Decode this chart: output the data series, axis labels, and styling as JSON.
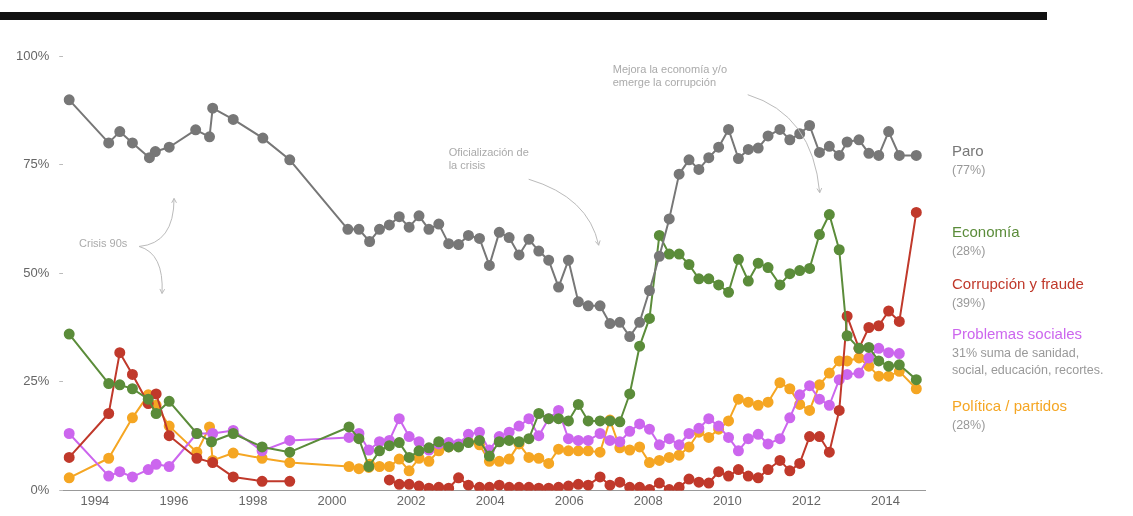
{
  "chart_data": {
    "type": "line",
    "xlim": [
      1993.2,
      2015
    ],
    "xticks": [
      1994,
      1996,
      1998,
      2000,
      2002,
      2004,
      2006,
      2008,
      2010,
      2012,
      2014
    ],
    "ylim": [
      0,
      100
    ],
    "yticks": [
      {
        "value": 0,
        "label": "0%"
      },
      {
        "value": 25,
        "label": "25%"
      },
      {
        "value": 50,
        "label": "50%"
      },
      {
        "value": 75,
        "label": "75%"
      },
      {
        "value": 100,
        "label": "100%"
      }
    ],
    "grid": false,
    "legend": false,
    "marker": "circle",
    "line_style": "solid",
    "series": [
      {
        "name": "Paro",
        "color": "#777777",
        "x": [
          1993.35,
          1994.35,
          1994.63,
          1994.95,
          1995.38,
          1995.53,
          1995.88,
          1996.55,
          1996.9,
          1996.98,
          1997.5,
          1998.25,
          1998.93,
          2000.4,
          2000.68,
          2000.95,
          2001.2,
          2001.45,
          2001.7,
          2001.95,
          2002.2,
          2002.45,
          2002.7,
          2002.95,
          2003.2,
          2003.45,
          2003.73,
          2003.98,
          2004.23,
          2004.48,
          2004.73,
          2004.98,
          2005.23,
          2005.48,
          2005.73,
          2005.98,
          2006.23,
          2006.48,
          2006.78,
          2007.03,
          2007.28,
          2007.53,
          2007.78,
          2008.03,
          2008.28,
          2008.53,
          2008.78,
          2009.03,
          2009.28,
          2009.53,
          2009.78,
          2010.03,
          2010.28,
          2010.53,
          2010.78,
          2011.03,
          2011.33,
          2011.58,
          2011.83,
          2012.08,
          2012.33,
          2012.58,
          2012.83,
          2013.03,
          2013.33,
          2013.58,
          2013.83,
          2014.08,
          2014.35,
          2014.78
        ],
        "values": [
          89.9,
          80,
          82.6,
          80,
          76.6,
          78,
          79,
          83,
          81.4,
          88,
          85.4,
          81.1,
          76.1,
          60.1,
          60.1,
          57.3,
          60.1,
          61.1,
          63,
          60.6,
          63.2,
          60.1,
          61.3,
          56.8,
          56.6,
          58.7,
          58,
          51.8,
          59.4,
          58.2,
          54.2,
          57.8,
          55.1,
          53,
          46.8,
          53,
          43.4,
          42.5,
          42.5,
          38.4,
          38.7,
          35.4,
          38.7,
          46,
          53.9,
          62.5,
          72.8,
          76.1,
          73.9,
          76.6,
          79,
          83.1,
          76.4,
          78.5,
          78.8,
          81.6,
          83.1,
          80.7,
          82.1,
          84,
          77.8,
          79.2,
          77.1,
          80.2,
          80.7,
          77.6,
          77.1,
          82.6,
          77.1,
          77.1
        ]
      },
      {
        "name": "Economía",
        "color": "#5b8c3a",
        "x": [
          1993.35,
          1994.35,
          1994.63,
          1994.95,
          1995.35,
          1995.55,
          1995.88,
          1996.58,
          1996.95,
          1997.5,
          1998.23,
          1998.93,
          2000.43,
          2000.68,
          2000.93,
          2001.2,
          2001.45,
          2001.7,
          2001.95,
          2002.2,
          2002.45,
          2002.7,
          2002.95,
          2003.2,
          2003.45,
          2003.73,
          2003.98,
          2004.23,
          2004.48,
          2004.73,
          2004.98,
          2005.23,
          2005.48,
          2005.73,
          2005.98,
          2006.23,
          2006.48,
          2006.78,
          2007.03,
          2007.28,
          2007.53,
          2007.78,
          2008.03,
          2008.28,
          2008.53,
          2008.78,
          2009.03,
          2009.28,
          2009.53,
          2009.78,
          2010.03,
          2010.28,
          2010.53,
          2010.78,
          2011.03,
          2011.33,
          2011.58,
          2011.83,
          2012.08,
          2012.33,
          2012.58,
          2012.83,
          2013.03,
          2013.33,
          2013.58,
          2013.83,
          2014.08,
          2014.35,
          2014.78
        ],
        "values": [
          36,
          24.6,
          24.3,
          23.4,
          21,
          17.7,
          20.5,
          13.1,
          11.2,
          13.1,
          10,
          8.8,
          14.6,
          11.9,
          5.5,
          9.1,
          10.3,
          11,
          7.6,
          9.1,
          9.8,
          11.2,
          10,
          10,
          11,
          11.5,
          7.9,
          11.2,
          11.5,
          11.2,
          11.9,
          17.7,
          16.5,
          16.5,
          16,
          19.8,
          16,
          16,
          16,
          15.8,
          22.2,
          33.2,
          39.6,
          58.7,
          54.4,
          54.4,
          52,
          48.7,
          48.7,
          47.3,
          45.6,
          53.2,
          48.2,
          52.3,
          51.3,
          47.3,
          49.9,
          50.6,
          51.1,
          58.9,
          63.5,
          55.4,
          35.6,
          32.7,
          32.9,
          29.8,
          28.6,
          28.9,
          25.5
        ]
      },
      {
        "name": "Corrupción y fraude",
        "color": "#c0392b",
        "x": [
          1993.35,
          1994.35,
          1994.63,
          1994.95,
          1995.35,
          1995.55,
          1995.88,
          1996.58,
          1996.98,
          1997.5,
          1998.23,
          1998.93,
          2000,
          2001.45,
          2001.7,
          2001.95,
          2002.2,
          2002.45,
          2002.7,
          2002.95,
          2003.2,
          2003.45,
          2003.73,
          2003.98,
          2004.23,
          2004.48,
          2004.73,
          2004.98,
          2005.23,
          2005.48,
          2005.73,
          2005.98,
          2006.23,
          2006.48,
          2006.78,
          2007.03,
          2007.28,
          2007.53,
          2007.78,
          2008.03,
          2008.28,
          2008.53,
          2008.78,
          2009.03,
          2009.28,
          2009.53,
          2009.78,
          2010.03,
          2010.28,
          2010.53,
          2010.78,
          2011.03,
          2011.33,
          2011.58,
          2011.83,
          2012.08,
          2012.33,
          2012.58,
          2012.83,
          2013.03,
          2013.33,
          2013.58,
          2013.83,
          2014.08,
          2014.35,
          2014.78
        ],
        "values": [
          7.6,
          17.7,
          31.7,
          26.7,
          20,
          22.2,
          12.6,
          7.4,
          6.4,
          3.1,
          2.1,
          2.1,
          null,
          2.4,
          1.4,
          1.4,
          1,
          0.5,
          0.7,
          0.5,
          2.9,
          1.2,
          0.7,
          0.7,
          1.2,
          0.7,
          0.7,
          0.7,
          0.5,
          0.5,
          0.7,
          1,
          1.4,
          1.2,
          3.1,
          1.2,
          1.9,
          0.7,
          0.7,
          0.2,
          1.7,
          0.2,
          0.7,
          2.6,
          1.9,
          1.7,
          4.3,
          3.3,
          4.8,
          3.3,
          2.9,
          4.8,
          6.9,
          4.5,
          6.2,
          12.4,
          12.4,
          8.8,
          18.4,
          40.1,
          32.7,
          37.5,
          37.9,
          41.3,
          38.9,
          64
        ]
      },
      {
        "name": "Problemas sociales",
        "color": "#cc66ee",
        "x": [
          1993.35,
          1994.35,
          1994.63,
          1994.95,
          1995.35,
          1995.55,
          1995.88,
          1996.58,
          1996.98,
          1997.5,
          1998.23,
          1998.93,
          2000.43,
          2000.68,
          2000.93,
          2001.2,
          2001.45,
          2001.7,
          2001.95,
          2002.2,
          2002.45,
          2002.7,
          2002.95,
          2003.2,
          2003.45,
          2003.73,
          2003.98,
          2004.23,
          2004.48,
          2004.73,
          2004.98,
          2005.23,
          2005.48,
          2005.73,
          2005.98,
          2006.23,
          2006.48,
          2006.78,
          2007.03,
          2007.28,
          2007.53,
          2007.78,
          2008.03,
          2008.28,
          2008.53,
          2008.78,
          2009.03,
          2009.28,
          2009.53,
          2009.78,
          2010.03,
          2010.28,
          2010.53,
          2010.78,
          2011.03,
          2011.33,
          2011.58,
          2011.83,
          2012.08,
          2012.33,
          2012.58,
          2012.83,
          2013.03,
          2013.33,
          2013.58,
          2013.83,
          2014.08,
          2014.35
        ],
        "values": [
          13.1,
          3.3,
          4.3,
          3.1,
          4.8,
          6,
          5.5,
          13.1,
          13.1,
          13.8,
          9.1,
          11.5,
          12.2,
          13.1,
          9.3,
          11.2,
          11.5,
          16.5,
          12.4,
          11.2,
          9.3,
          10.7,
          11,
          10.7,
          12.9,
          13.4,
          9.3,
          12.4,
          13.4,
          14.8,
          16.5,
          12.6,
          16.5,
          18.4,
          11.9,
          11.5,
          11.5,
          13.1,
          11.5,
          11.2,
          13.6,
          15.3,
          14.1,
          10.5,
          11.9,
          10.5,
          13.1,
          14.3,
          16.5,
          14.8,
          12.2,
          9.1,
          11.9,
          12.9,
          10.7,
          11.9,
          16.7,
          22,
          24.1,
          21,
          19.6,
          25.5,
          26.7,
          27,
          30.5,
          32.7,
          31.7,
          31.5
        ]
      },
      {
        "name": "Política / partidos",
        "color": "#f5a623",
        "x": [
          1993.35,
          1994.35,
          1994.95,
          1995.35,
          1995.55,
          1995.88,
          1996.58,
          1996.9,
          1996.98,
          1997.5,
          1998.23,
          1998.93,
          2000.43,
          2000.68,
          2000.93,
          2000.95,
          2001.2,
          2001.45,
          2001.7,
          2001.95,
          2002.2,
          2002.45,
          2002.7,
          2002.95,
          2003.2,
          2003.45,
          2003.73,
          2003.98,
          2004.23,
          2004.48,
          2004.73,
          2004.98,
          2005.23,
          2005.48,
          2005.73,
          2005.98,
          2006.23,
          2006.48,
          2006.78,
          2007.03,
          2007.28,
          2007.53,
          2007.78,
          2008.03,
          2008.28,
          2008.53,
          2008.78,
          2009.03,
          2009.28,
          2009.53,
          2009.78,
          2010.03,
          2010.28,
          2010.53,
          2010.78,
          2011.03,
          2011.33,
          2011.58,
          2011.83,
          2012.08,
          2012.33,
          2012.58,
          2012.83,
          2013.03,
          2013.33,
          2013.58,
          2013.83,
          2014.08,
          2014.35,
          2014.78
        ],
        "values": [
          2.9,
          7.4,
          16.7,
          22,
          19.6,
          14.8,
          8.8,
          14.6,
          6.9,
          8.6,
          7.4,
          6.4,
          5.5,
          5,
          5.3,
          6,
          5.5,
          5.5,
          7.2,
          4.5,
          7.4,
          6.7,
          9.1,
          10,
          10.3,
          11.2,
          10.5,
          6.7,
          6.7,
          7.2,
          10.7,
          7.6,
          7.4,
          6.2,
          9.5,
          9.1,
          9.1,
          9.1,
          8.8,
          16.2,
          9.8,
          9.3,
          10,
          6.4,
          6.9,
          7.6,
          8.1,
          10,
          13.4,
          12.2,
          14.1,
          16,
          21,
          20.3,
          19.6,
          20.3,
          24.8,
          23.4,
          19.8,
          18.4,
          24.3,
          27,
          29.8,
          29.8,
          30.5,
          28.6,
          26.3,
          26.3,
          27.4,
          23.4
        ]
      }
    ],
    "annotations": [
      "Crisis 90s",
      "Oficialización de la crisis",
      "Mejora la economía y/o emerge la corrupción",
      "(77%)",
      "(28%)",
      "(39%)",
      "31% suma de sanidad, social, educación, recortes.",
      "(28%)"
    ]
  }
}
